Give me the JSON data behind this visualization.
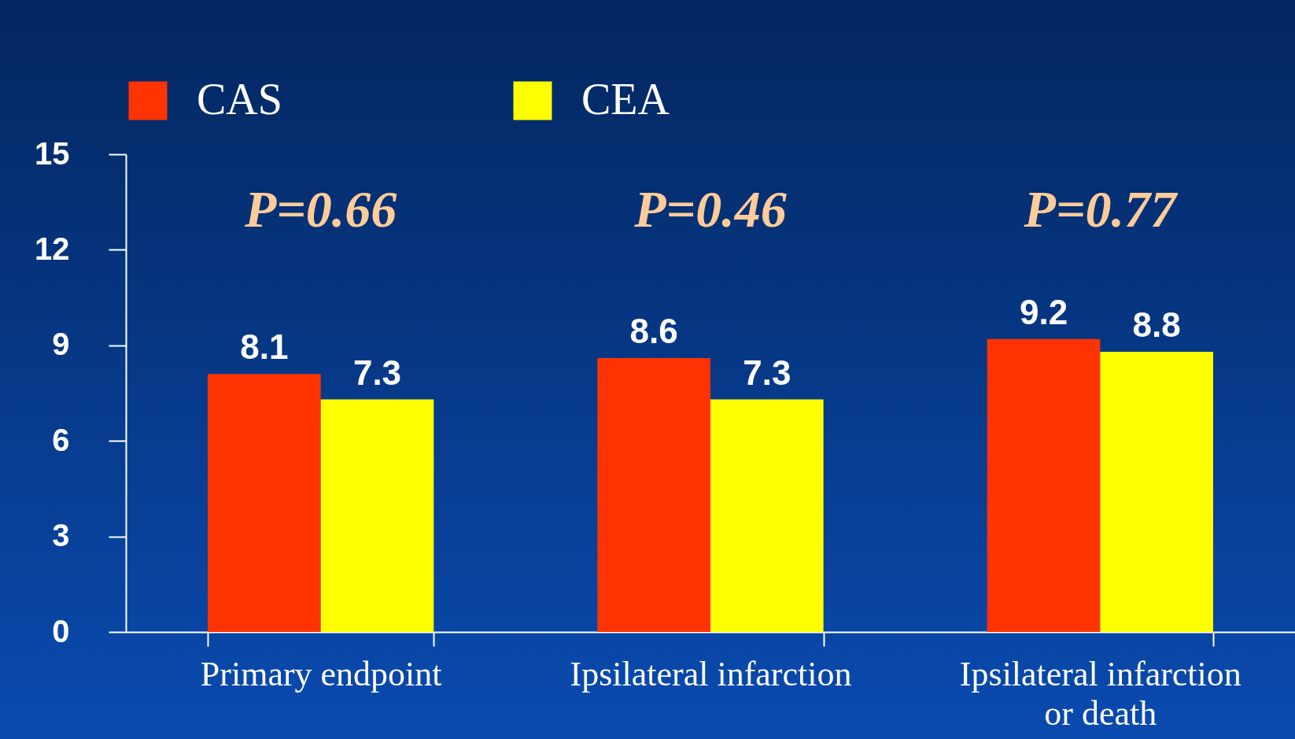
{
  "chart_data": {
    "type": "bar",
    "categories": [
      "Primary endpoint",
      "Ipsilateral infarction",
      "Ipsilateral infarction or death"
    ],
    "series": [
      {
        "name": "CAS",
        "color": "#ff3300",
        "values": [
          8.1,
          8.6,
          9.2
        ]
      },
      {
        "name": "CEA",
        "color": "#ffff00",
        "values": [
          7.3,
          7.3,
          8.8
        ]
      }
    ],
    "ylim": [
      0,
      15
    ],
    "yticks": [
      0,
      3,
      6,
      9,
      12,
      15
    ],
    "grid": false,
    "legend": "top",
    "data_labels": true,
    "annotations": [
      "P=0.66",
      "P=0.46",
      "P=0.77"
    ]
  }
}
